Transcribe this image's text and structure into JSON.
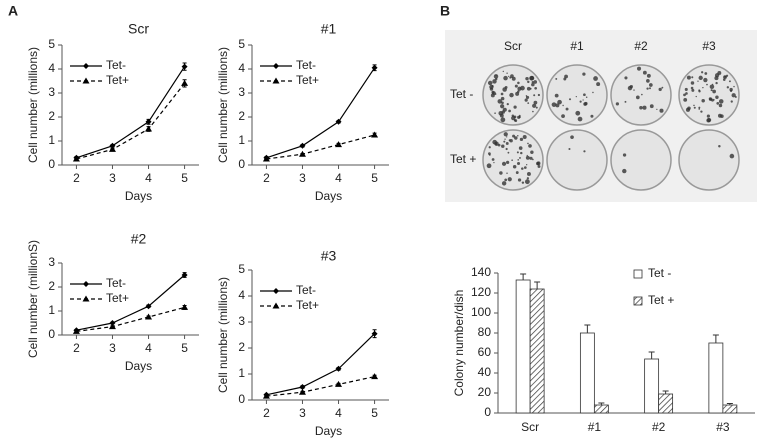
{
  "panels": [
    "A",
    "B"
  ],
  "image": {
    "columns": [
      "Scr",
      "#1",
      "#2",
      "#3"
    ],
    "rows": [
      "Tet -",
      "Tet +"
    ]
  },
  "chart_data": [
    {
      "type": "line",
      "title": "Scr",
      "xlabel": "Days",
      "ylabel": "Cell number (millions)",
      "x": [
        2,
        3,
        4,
        5
      ],
      "xlim": [
        1.6,
        5.4
      ],
      "xticks": [
        2,
        3,
        4,
        5
      ],
      "ylim": [
        0,
        5
      ],
      "yticks": [
        0,
        1,
        2,
        3,
        4,
        5
      ],
      "legend": "upper left",
      "series": [
        {
          "name": "Tet-",
          "color": "#000000",
          "dash": "solid",
          "marker": "diamond",
          "values": [
            0.3,
            0.8,
            1.8,
            4.1
          ],
          "errors": [
            0.05,
            0.05,
            0.1,
            0.15
          ]
        },
        {
          "name": "Tet+",
          "color": "#000000",
          "dash": "dashed",
          "marker": "triangle",
          "values": [
            0.25,
            0.65,
            1.5,
            3.4
          ],
          "errors": [
            0.05,
            0.05,
            0.1,
            0.15
          ]
        }
      ]
    },
    {
      "type": "line",
      "title": "#1",
      "xlabel": "Days",
      "ylabel": "Cell number (millions)",
      "x": [
        2,
        3,
        4,
        5
      ],
      "xlim": [
        1.6,
        5.4
      ],
      "xticks": [
        2,
        3,
        4,
        5
      ],
      "ylim": [
        0,
        5
      ],
      "yticks": [
        0,
        1,
        2,
        3,
        4,
        5
      ],
      "legend": "upper left",
      "series": [
        {
          "name": "Tet-",
          "color": "#000000",
          "dash": "solid",
          "marker": "diamond",
          "values": [
            0.3,
            0.8,
            1.8,
            4.05
          ],
          "errors": [
            0.05,
            0.05,
            0.05,
            0.12
          ]
        },
        {
          "name": "Tet+",
          "color": "#000000",
          "dash": "dashed",
          "marker": "triangle",
          "values": [
            0.25,
            0.45,
            0.85,
            1.25
          ],
          "errors": [
            0.03,
            0.03,
            0.05,
            0.08
          ]
        }
      ]
    },
    {
      "type": "line",
      "title": "#2",
      "xlabel": "Days",
      "ylabel": "Cell number (millionS)",
      "x": [
        2,
        3,
        4,
        5
      ],
      "xlim": [
        1.6,
        5.4
      ],
      "xticks": [
        2,
        3,
        4,
        5
      ],
      "ylim": [
        0,
        3
      ],
      "yticks": [
        0,
        1,
        2,
        3
      ],
      "legend": "upper left",
      "series": [
        {
          "name": "Tet-",
          "color": "#000000",
          "dash": "solid",
          "marker": "diamond",
          "values": [
            0.2,
            0.5,
            1.2,
            2.5
          ],
          "errors": [
            0.03,
            0.03,
            0.05,
            0.1
          ]
        },
        {
          "name": "Tet+",
          "color": "#000000",
          "dash": "dashed",
          "marker": "triangle",
          "values": [
            0.15,
            0.35,
            0.75,
            1.15
          ],
          "errors": [
            0.03,
            0.03,
            0.04,
            0.08
          ]
        }
      ]
    },
    {
      "type": "line",
      "title": "#3",
      "xlabel": "Days",
      "ylabel": "Cell number (millions)",
      "x": [
        2,
        3,
        4,
        5
      ],
      "xlim": [
        1.6,
        5.4
      ],
      "xticks": [
        2,
        3,
        4,
        5
      ],
      "ylim": [
        0,
        5
      ],
      "yticks": [
        0,
        1,
        2,
        3,
        4,
        5
      ],
      "legend": "upper left",
      "series": [
        {
          "name": "Tet-",
          "color": "#000000",
          "dash": "solid",
          "marker": "diamond",
          "values": [
            0.2,
            0.5,
            1.2,
            2.55
          ],
          "errors": [
            0.03,
            0.05,
            0.05,
            0.15
          ]
        },
        {
          "name": "Tet+",
          "color": "#000000",
          "dash": "dashed",
          "marker": "triangle",
          "values": [
            0.15,
            0.3,
            0.6,
            0.9
          ],
          "errors": [
            0.03,
            0.03,
            0.04,
            0.05
          ]
        }
      ]
    },
    {
      "type": "bar",
      "ylabel": "Colony number/dish",
      "categories": [
        "Scr",
        "#1",
        "#2",
        "#3"
      ],
      "ylim": [
        0,
        140
      ],
      "yticks": [
        0,
        20,
        40,
        60,
        80,
        100,
        120,
        140
      ],
      "legend": "upper right",
      "series": [
        {
          "name": "Tet -",
          "color": "#ffffff",
          "pattern": "none",
          "values": [
            133,
            80,
            54,
            70
          ],
          "errors": [
            6,
            8,
            7,
            8
          ]
        },
        {
          "name": "Tet +",
          "color": "#ffffff",
          "pattern": "hatch",
          "values": [
            124,
            8,
            19,
            8
          ],
          "errors": [
            7,
            2,
            3,
            1.5
          ]
        }
      ]
    }
  ]
}
